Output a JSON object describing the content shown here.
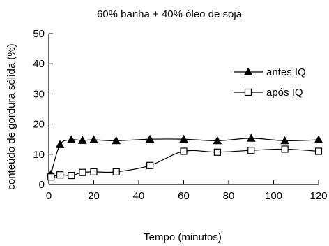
{
  "chart_data": {
    "type": "line",
    "title": "60% banha + 40% óleo de soja",
    "xlabel": "Tempo (minutos)",
    "ylabel": "conteúdo de gordura sólida (%)",
    "xlim": [
      0,
      120
    ],
    "ylim": [
      0,
      50
    ],
    "xticks": [
      0,
      20,
      40,
      60,
      80,
      100,
      120
    ],
    "yticks": [
      0,
      10,
      20,
      30,
      40,
      50
    ],
    "grid": false,
    "legend": "right",
    "series": [
      {
        "name": "antes IQ",
        "marker": "filled-triangle",
        "color": "#000000",
        "x": [
          1,
          5,
          10,
          15,
          20,
          30,
          45,
          60,
          75,
          90,
          105,
          120
        ],
        "y": [
          3.5,
          13.2,
          14.8,
          14.6,
          14.8,
          14.5,
          15.0,
          15.0,
          14.5,
          15.3,
          14.5,
          14.8
        ]
      },
      {
        "name": "após IQ",
        "marker": "open-square",
        "color": "#000000",
        "x": [
          1,
          5,
          10,
          15,
          20,
          30,
          45,
          60,
          75,
          90,
          105,
          120
        ],
        "y": [
          2.5,
          3.2,
          3.0,
          4.0,
          4.2,
          4.2,
          6.3,
          11.0,
          10.7,
          11.3,
          11.7,
          11.0
        ]
      }
    ]
  }
}
